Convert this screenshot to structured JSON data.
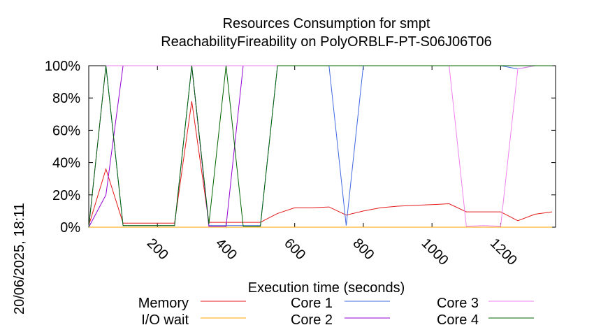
{
  "chart_data": {
    "type": "line",
    "title": "Resources Consumption for smpt",
    "subtitle": "ReachabilityFireability on PolyORBLF-PT-S06J06T06",
    "xlabel": "Execution time (seconds)",
    "ylabel": "",
    "xlim": [
      0,
      1360
    ],
    "ylim": [
      0,
      100
    ],
    "xticks": [
      200,
      400,
      600,
      800,
      1000,
      1200
    ],
    "yticks": [
      0,
      20,
      40,
      60,
      80,
      100
    ],
    "ytick_labels": [
      "0%",
      "20%",
      "40%",
      "60%",
      "80%",
      "100%"
    ],
    "grid": false,
    "legend_position": "bottom",
    "timestamp": "20/06/2025, 18:11",
    "series": [
      {
        "name": "Memory",
        "color": "#e41a1c",
        "x": [
          0,
          50,
          100,
          150,
          200,
          250,
          300,
          350,
          400,
          450,
          500,
          550,
          600,
          650,
          700,
          750,
          800,
          850,
          900,
          950,
          1000,
          1050,
          1100,
          1150,
          1200,
          1250,
          1300,
          1350
        ],
        "y": [
          1,
          36,
          2.5,
          2.5,
          2.5,
          2.5,
          78,
          3,
          3,
          3,
          3,
          8.5,
          12,
          12,
          12.5,
          7.5,
          10,
          12,
          13,
          13.5,
          14,
          14.5,
          9.5,
          9.5,
          9.5,
          4,
          8,
          9.5
        ]
      },
      {
        "name": "I/O wait",
        "color": "#ffa500",
        "x": [
          0,
          1350
        ],
        "y": [
          0,
          0
        ]
      },
      {
        "name": "Core 1",
        "color": "#4169e1",
        "x": [
          0,
          50,
          100,
          150,
          200,
          250,
          300,
          350,
          400,
          450,
          500,
          550,
          600,
          650,
          700,
          750,
          800,
          850,
          900,
          950,
          1000,
          1050,
          1100,
          1150,
          1200,
          1250,
          1300,
          1350
        ],
        "y": [
          0,
          100,
          1,
          1,
          1,
          1,
          100,
          1,
          1,
          1,
          1,
          100,
          100,
          100,
          100,
          1,
          100,
          100,
          100,
          100,
          100,
          100,
          100,
          100,
          100,
          98,
          100,
          100
        ]
      },
      {
        "name": "Core 2",
        "color": "#9400d3",
        "x": [
          0,
          50,
          100,
          150,
          200,
          250,
          300,
          350,
          400,
          450,
          500,
          550,
          600,
          650,
          700,
          750,
          800,
          850,
          900,
          950,
          1000,
          1050,
          1100,
          1150,
          1200,
          1250,
          1300,
          1350
        ],
        "y": [
          0,
          20,
          100,
          100,
          100,
          100,
          100,
          0.5,
          0.5,
          100,
          100,
          100,
          100,
          100,
          100,
          100,
          100,
          100,
          100,
          100,
          100,
          100,
          100,
          100,
          100,
          100,
          100,
          100
        ]
      },
      {
        "name": "Core 3",
        "color": "#ee82ee",
        "x": [
          0,
          50,
          100,
          150,
          200,
          250,
          300,
          350,
          400,
          450,
          500,
          550,
          600,
          650,
          700,
          750,
          800,
          850,
          900,
          950,
          1000,
          1050,
          1100,
          1150,
          1200,
          1250,
          1300,
          1350
        ],
        "y": [
          0,
          100,
          100,
          100,
          100,
          100,
          100,
          100,
          100,
          100,
          100,
          100,
          100,
          100,
          100,
          100,
          100,
          100,
          100,
          100,
          100,
          100,
          0.5,
          1,
          0.5,
          98,
          100,
          100
        ]
      },
      {
        "name": "Core 4",
        "color": "#006400",
        "x": [
          0,
          50,
          100,
          150,
          200,
          250,
          300,
          350,
          400,
          450,
          500,
          550,
          600,
          650,
          700,
          750,
          800,
          850,
          900,
          950,
          1000,
          1050,
          1100,
          1150,
          1200,
          1250,
          1300,
          1350
        ],
        "y": [
          0,
          100,
          1,
          1,
          1,
          1,
          100,
          2,
          100,
          0.5,
          0.5,
          100,
          100,
          100,
          100,
          100,
          100,
          100,
          100,
          100,
          100,
          100,
          100,
          100,
          100,
          100,
          100,
          100
        ]
      }
    ]
  }
}
